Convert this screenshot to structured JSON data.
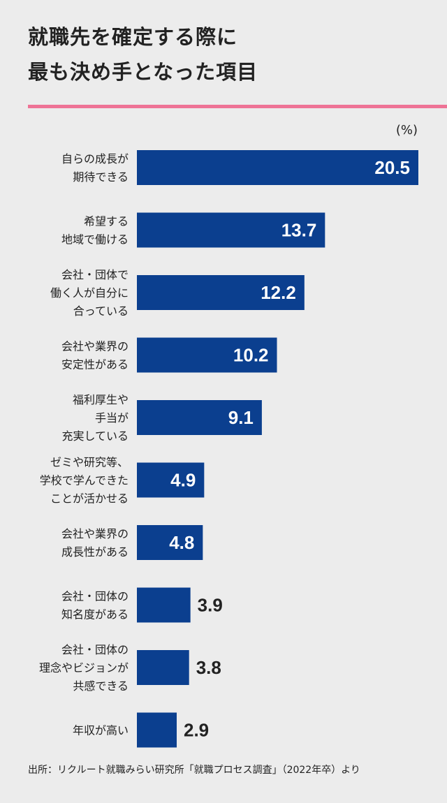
{
  "title": {
    "line1": "就職先を確定する際に",
    "line2": "最も決め手となった項目"
  },
  "unit": "(%)",
  "source": "出所：リクルート就職みらい研究所「就職プロセス調査」（2022年卒）より",
  "colors": {
    "bar": "#0b3f8f",
    "accent": "#ee7396",
    "background": "#ececec",
    "text": "#222222",
    "label_inside": "#ffffff"
  },
  "chart_data": {
    "type": "bar",
    "orientation": "horizontal",
    "categories": [
      [
        "自らの成長が",
        "期待できる"
      ],
      [
        "希望する",
        "地域で働ける"
      ],
      [
        "会社・団体で",
        "働く人が自分に",
        "合っている"
      ],
      [
        "会社や業界の",
        "安定性がある"
      ],
      [
        "福利厚生や",
        "手当が",
        "充実している"
      ],
      [
        "ゼミや研究等、",
        "学校で学んできた",
        "ことが活かせる"
      ],
      [
        "会社や業界の",
        "成長性がある"
      ],
      [
        "会社・団体の",
        "知名度がある"
      ],
      [
        "会社・団体の",
        "理念やビジョンが",
        "共感できる"
      ],
      [
        "年収が高い"
      ]
    ],
    "values": [
      20.5,
      13.7,
      12.2,
      10.2,
      9.1,
      4.9,
      4.8,
      3.9,
      3.8,
      2.9
    ],
    "value_labels": [
      "20.5",
      "13.7",
      "12.2",
      "10.2",
      "9.1",
      "4.9",
      "4.8",
      "3.9",
      "3.8",
      "2.9"
    ],
    "xlim": [
      0,
      20.5
    ],
    "grid": false,
    "legend": "none"
  }
}
